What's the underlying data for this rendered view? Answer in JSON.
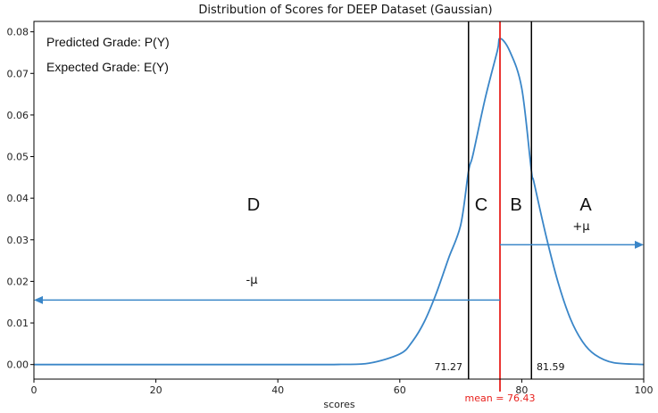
{
  "chart_data": {
    "type": "line",
    "title": "Distribution of Scores for DEEP Dataset (Gaussian)",
    "xlabel": "scores",
    "ylabel": "",
    "xlim": [
      0,
      100
    ],
    "ylim": [
      -0.0035,
      0.0825
    ],
    "xticks": [
      0,
      20,
      40,
      60,
      80,
      100
    ],
    "yticks": [
      0.0,
      0.01,
      0.02,
      0.03,
      0.04,
      0.05,
      0.06,
      0.07,
      0.08
    ],
    "ytick_labels": [
      "0.00",
      "0.01",
      "0.02",
      "0.03",
      "0.04",
      "0.05",
      "0.06",
      "0.07",
      "0.08"
    ],
    "xtick_labels": [
      "0",
      "20",
      "40",
      "60",
      "80",
      "100"
    ],
    "grid": false,
    "series": [
      {
        "x": [
          0,
          40,
          50,
          55,
          60,
          62,
          64,
          66,
          68,
          70,
          71.27,
          72,
          74,
          76,
          76.43,
          78,
          80,
          81.59,
          82,
          84,
          86,
          88,
          90,
          92,
          95,
          100
        ],
        "y": [
          0.0,
          0.0,
          3e-05,
          0.00033,
          0.00254,
          0.00542,
          0.01024,
          0.01719,
          0.02555,
          0.03365,
          0.04648,
          0.05045,
          0.06397,
          0.07544,
          0.0784,
          0.07544,
          0.06641,
          0.04648,
          0.04383,
          0.03084,
          0.01952,
          0.01094,
          0.00543,
          0.00238,
          0.00047,
          2e-05
        ],
        "color": "#3a86c8"
      }
    ],
    "mean": 76.43,
    "lower_bound": 71.27,
    "upper_bound": 81.59,
    "mean_color": "#e8211d",
    "arrow_color": "#3a86c8",
    "arrow_left": {
      "from_x": 76.43,
      "to_x": 0,
      "y": 0.0155
    },
    "arrow_right": {
      "from_x": 76.43,
      "to_x": 100,
      "y": 0.0288
    }
  },
  "annotations": {
    "predicted": "Predicted Grade: P(Y)",
    "expected": "Expected Grade: E(Y)",
    "grade_d": "D",
    "grade_c": "C",
    "grade_b": "B",
    "grade_a": "A",
    "minus_mu": "-μ",
    "plus_mu": "+μ",
    "lower_label": "71.27",
    "upper_label": "81.59",
    "mean_label": "mean = 76.43"
  }
}
